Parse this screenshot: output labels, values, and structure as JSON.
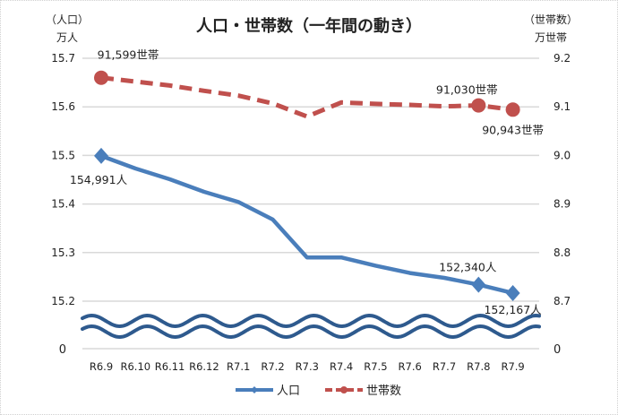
{
  "chart_data": {
    "type": "line",
    "title": "人口・世帯数（一年間の動き）",
    "left_axis_label": [
      "（人口）",
      "万人"
    ],
    "right_axis_label": [
      "（世帯数）",
      "万世帯"
    ],
    "categories": [
      "R6.9",
      "R6.10",
      "R6.11",
      "R6.12",
      "R7.1",
      "R7.2",
      "R7.3",
      "R7.4",
      "R7.5",
      "R7.6",
      "R7.7",
      "R7.8",
      "R7.9"
    ],
    "left_ylim": [
      15.2,
      15.7
    ],
    "right_ylim": [
      8.7,
      9.2
    ],
    "left_ticks": [
      "15.7",
      "15.6",
      "15.5",
      "15.4",
      "15.3",
      "15.2"
    ],
    "right_ticks": [
      "9.2",
      "9.1",
      "9.0",
      "8.9",
      "8.8",
      "8.7"
    ],
    "axis_zero_label": "0",
    "axis_break": true,
    "grid": true,
    "legend_position": "bottom",
    "series": [
      {
        "name": "人口",
        "axis": "left",
        "color": "#4a7ebb",
        "style": "solid",
        "marker": "diamond",
        "values": [
          15.4991,
          15.473,
          15.451,
          15.425,
          15.404,
          15.368,
          15.29,
          15.29,
          15.273,
          15.258,
          15.248,
          15.234,
          15.2167
        ],
        "labels": {
          "0": "154,991人",
          "11": "152,340人",
          "12": "152,167人"
        }
      },
      {
        "name": "世帯数",
        "axis": "right",
        "color": "#c0504d",
        "style": "dashed",
        "marker": "circle",
        "values": [
          9.1599,
          9.152,
          9.144,
          9.133,
          9.123,
          9.107,
          9.08,
          9.109,
          9.106,
          9.104,
          9.101,
          9.103,
          9.0943
        ],
        "labels": {
          "0": "91,599世帯",
          "11": "91,030世帯",
          "12": "90,943世帯"
        }
      }
    ]
  }
}
